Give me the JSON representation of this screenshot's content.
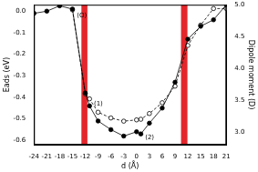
{
  "chart_data": {
    "type": "line",
    "x_label": "d (Å)",
    "y_label": "Eads (eV)",
    "y2_label": "Dipole moment (D)",
    "x": [
      -24,
      -21,
      -18,
      -15,
      -12,
      -11,
      -9,
      -6,
      -3,
      0,
      1,
      3,
      6,
      9,
      12,
      15,
      18,
      21
    ],
    "series": [
      {
        "name": "Eads",
        "color": "#000000",
        "marker": "filled_circle",
        "line_style": "solid",
        "values": [
          -0.01,
          0.0,
          0.025,
          0.01,
          -0.38,
          -0.44,
          -0.51,
          -0.55,
          -0.58,
          -0.56,
          -0.57,
          -0.52,
          -0.45,
          -0.33,
          -0.13,
          -0.07,
          -0.04,
          0.03
        ]
      },
      {
        "name": "Dipole moment",
        "color": "#000000",
        "marker": "open_circle",
        "line_style": "dashed",
        "axis": "y2",
        "values": [
          null,
          null,
          null,
          4.92,
          3.6,
          3.52,
          3.31,
          3.22,
          3.17,
          3.19,
          3.2,
          3.29,
          3.46,
          3.72,
          4.36,
          4.68,
          4.94,
          4.94
        ]
      }
    ],
    "xlim": [
      -24,
      21
    ],
    "xticks": [
      -24,
      -21,
      -18,
      -15,
      -12,
      -9,
      -6,
      -3,
      0,
      3,
      6,
      9,
      12,
      15,
      18,
      21
    ],
    "ylim": [
      -0.62,
      0.03
    ],
    "yticks": [
      -0.6,
      -0.5,
      -0.4,
      -0.3,
      -0.2,
      -0.1,
      {
        "value": 0,
        "label": "0.0"
      }
    ],
    "y2lim": [
      2.8,
      5.0
    ],
    "y2ticks": [
      {
        "value": 3,
        "label": "3.0"
      },
      3.5,
      {
        "value": 4,
        "label": "4.0"
      },
      4.5,
      {
        "value": 5,
        "label": "5.0"
      }
    ],
    "regions": [
      {
        "x0": -12.9,
        "x1": -11.5,
        "color": "#e3262b"
      },
      {
        "x0": 10.4,
        "x1": 11.9,
        "color": "#e3262b"
      }
    ],
    "annotations": [
      {
        "text": "(O)",
        "x": -14,
        "y": -0.02
      },
      {
        "text": "(1)",
        "x": -10,
        "y": -0.43
      },
      {
        "text": "(2)",
        "x": 2,
        "y": -0.585
      }
    ],
    "grid": false,
    "legend": false
  }
}
